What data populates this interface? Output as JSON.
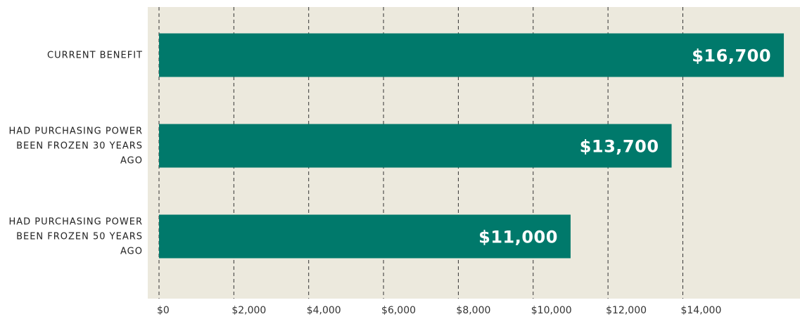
{
  "chart_data": {
    "type": "barh",
    "categories": [
      "CURRENT BENEFIT",
      "HAD PURCHASING POWER BEEN FROZEN 30 YEARS AGO",
      "HAD PURCHASING POWER BEEN FROZEN 50 YEARS AGO"
    ],
    "values": [
      16700,
      13700,
      11000
    ],
    "value_labels": [
      "$16,700",
      "$13,700",
      "$11,000"
    ],
    "color": "#00796b",
    "xlim": [
      0,
      17000
    ],
    "xticks": [
      {
        "value": 0,
        "label": "$0"
      },
      {
        "value": 2000,
        "label": "$2,000"
      },
      {
        "value": 4000,
        "label": "$4,000"
      },
      {
        "value": 6000,
        "label": "$6,000"
      },
      {
        "value": 8000,
        "label": "$8,000"
      },
      {
        "value": 10000,
        "label": "$10,000"
      },
      {
        "value": 12000,
        "label": "$12,000"
      },
      {
        "value": 14000,
        "label": "$14,000"
      }
    ],
    "grid": true
  }
}
